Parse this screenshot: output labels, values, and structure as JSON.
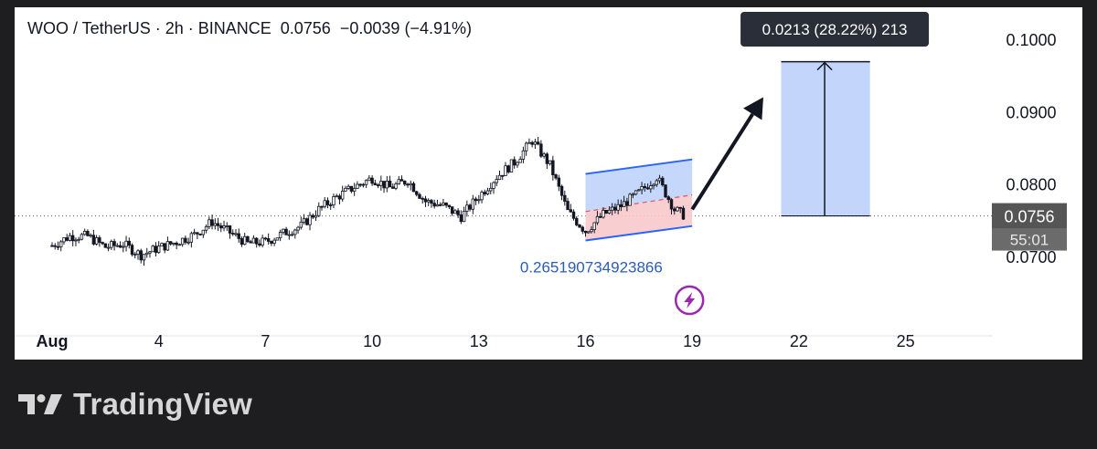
{
  "header": {
    "symbol": "WOO / TetherUS",
    "interval": "2h",
    "exchange": "BINANCE",
    "last": "0.0756",
    "change": "−0.0039",
    "change_pct": "(−4.91%)"
  },
  "measure_tooltip": "0.0213 (28.22%) 213",
  "channel_label": "0.265190734923866",
  "price_badge": {
    "price": "0.0756",
    "countdown": "55:01"
  },
  "footer": {
    "brand": "TradingView"
  },
  "colors": {
    "candle": "#131722",
    "channel_line": "#2962ff",
    "channel_fill_upper": "#bcd0fb",
    "channel_fill_lower": "#f8c9cc",
    "target_fill": "#bcd0fb",
    "label_blue": "#2a5cbd",
    "badge_bg": "#555555",
    "tooltip_bg": "#2a2e39",
    "flash_icon": "#9c27b0"
  },
  "chart_data": {
    "type": "candlestick",
    "yticks": [
      "0.1000",
      "0.0900",
      "0.0800",
      "0.0700"
    ],
    "xticks": [
      "Aug",
      "4",
      "7",
      "10",
      "13",
      "16",
      "19",
      "22",
      "25"
    ],
    "ylim": [
      0.0608,
      0.104
    ],
    "price_series": [
      [
        1,
        0.0715
      ],
      [
        1.5,
        0.0728
      ],
      [
        2,
        0.0728
      ],
      [
        2.5,
        0.0713
      ],
      [
        3,
        0.0717
      ],
      [
        3.5,
        0.0702
      ],
      [
        4,
        0.0712
      ],
      [
        4.5,
        0.072
      ],
      [
        5,
        0.073
      ],
      [
        5.5,
        0.0748
      ],
      [
        6,
        0.0733
      ],
      [
        6.5,
        0.0718
      ],
      [
        7,
        0.072
      ],
      [
        7.5,
        0.0732
      ],
      [
        8,
        0.0742
      ],
      [
        8.5,
        0.0765
      ],
      [
        9,
        0.0782
      ],
      [
        9.5,
        0.0796
      ],
      [
        10,
        0.0808
      ],
      [
        10.5,
        0.0795
      ],
      [
        11,
        0.0805
      ],
      [
        11.5,
        0.0776
      ],
      [
        12,
        0.077
      ],
      [
        12.5,
        0.0755
      ],
      [
        13,
        0.0783
      ],
      [
        13.5,
        0.081
      ],
      [
        14,
        0.083
      ],
      [
        14.5,
        0.086
      ],
      [
        15,
        0.0826
      ],
      [
        15.5,
        0.0762
      ],
      [
        16,
        0.0735
      ],
      [
        16.5,
        0.0758
      ],
      [
        17,
        0.077
      ],
      [
        17.5,
        0.0788
      ],
      [
        18,
        0.081
      ],
      [
        18.5,
        0.0765
      ],
      [
        18.8,
        0.0756
      ]
    ],
    "channel": {
      "start_day": 16.0,
      "end_day": 19.0,
      "lower_start": 0.0722,
      "lower_end": 0.0742,
      "upper_start": 0.0814,
      "upper_end": 0.0834,
      "mid_start": 0.0762,
      "mid_end": 0.0785
    },
    "current_price": 0.0756,
    "target_box": {
      "start_day": 21.5,
      "end_day": 24.0,
      "from_price": 0.0756,
      "to_price": 0.0969
    },
    "arrow": {
      "from_day": 19.0,
      "from_price": 0.0765,
      "to_day": 21.0,
      "to_price": 0.092
    }
  }
}
